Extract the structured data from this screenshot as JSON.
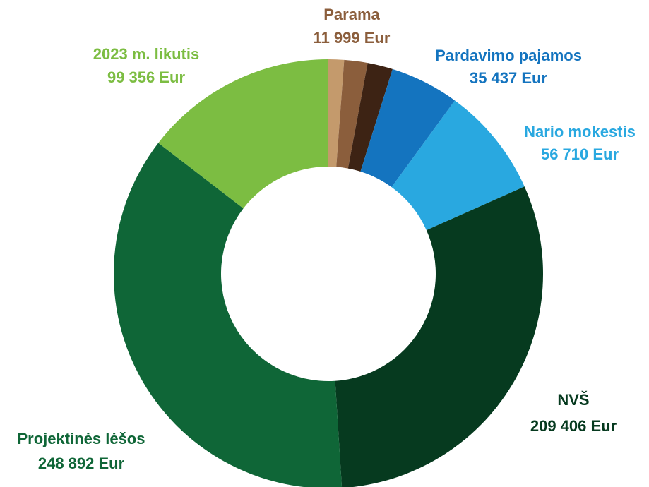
{
  "chart_data": {
    "type": "donut",
    "categories": [
      null,
      "Parama",
      null,
      "Pardavimo pajamos",
      "Nario mokestis",
      "NVŠ",
      "Projektinės lėšos",
      "2023 m. likutis"
    ],
    "values": [
      8000,
      11999,
      13000,
      35437,
      56710,
      209406,
      248892,
      99356
    ],
    "value_labels": [
      null,
      "11 999 Eur",
      null,
      "35 437 Eur",
      "56 710 Eur",
      "209 406 Eur",
      "248 892 Eur",
      "99 356 Eur"
    ],
    "colors": [
      "#c49a6c",
      "#8b5e3c",
      "#3d2314",
      "#1474bf",
      "#29a8e0",
      "#063a1f",
      "#0f6637",
      "#7cbd42"
    ],
    "label_colors": [
      "#c49a6c",
      "#8b5e3c",
      "#3d2314",
      "#1474bf",
      "#29a8e0",
      "#063a1f",
      "#0f6637",
      "#7cbd42"
    ]
  }
}
